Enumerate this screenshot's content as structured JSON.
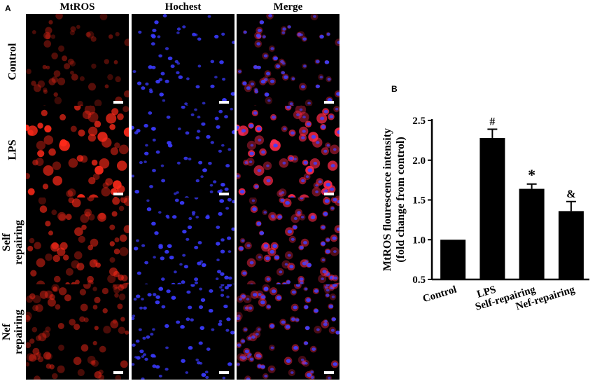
{
  "panel_a": {
    "letter": "A",
    "columns": [
      "MtROS",
      "Hochest",
      "Merge"
    ],
    "rows": [
      {
        "lines": [
          "Control"
        ],
        "intensity": 0.3
      },
      {
        "lines": [
          "LPS"
        ],
        "intensity": 1.0
      },
      {
        "lines": [
          "Self",
          "repairing"
        ],
        "intensity": 0.62
      },
      {
        "lines": [
          "Nef",
          "repairing"
        ],
        "intensity": 0.45
      }
    ],
    "colors": {
      "mtros": "#ff2a1a",
      "hochest": "#3a3aff",
      "merge_red": "#ff2a4a",
      "merge_blue": "#4040ff",
      "scale_bar": "#ffffff"
    }
  },
  "panel_b": {
    "letter": "B"
  },
  "chart_data": {
    "type": "bar",
    "categories": [
      "Control",
      "LPS",
      "Self-repairing",
      "Nef-repairing"
    ],
    "values": [
      1.0,
      2.28,
      1.64,
      1.36
    ],
    "errors": [
      0.0,
      0.11,
      0.06,
      0.12
    ],
    "significance": [
      "",
      "#",
      "*",
      "&"
    ],
    "xlabel": "",
    "ylabel": [
      "MtROS flourescence intensity",
      "(fold change from control)"
    ],
    "ylim": [
      0.5,
      2.5
    ],
    "yticks": [
      "0.5",
      "1.0",
      "1.5",
      "2.0",
      "2.5"
    ],
    "tick_values": [
      0.5,
      1.0,
      1.5,
      2.0,
      2.5
    ],
    "bar_color": "#000000",
    "grid": false,
    "legend": "none"
  }
}
